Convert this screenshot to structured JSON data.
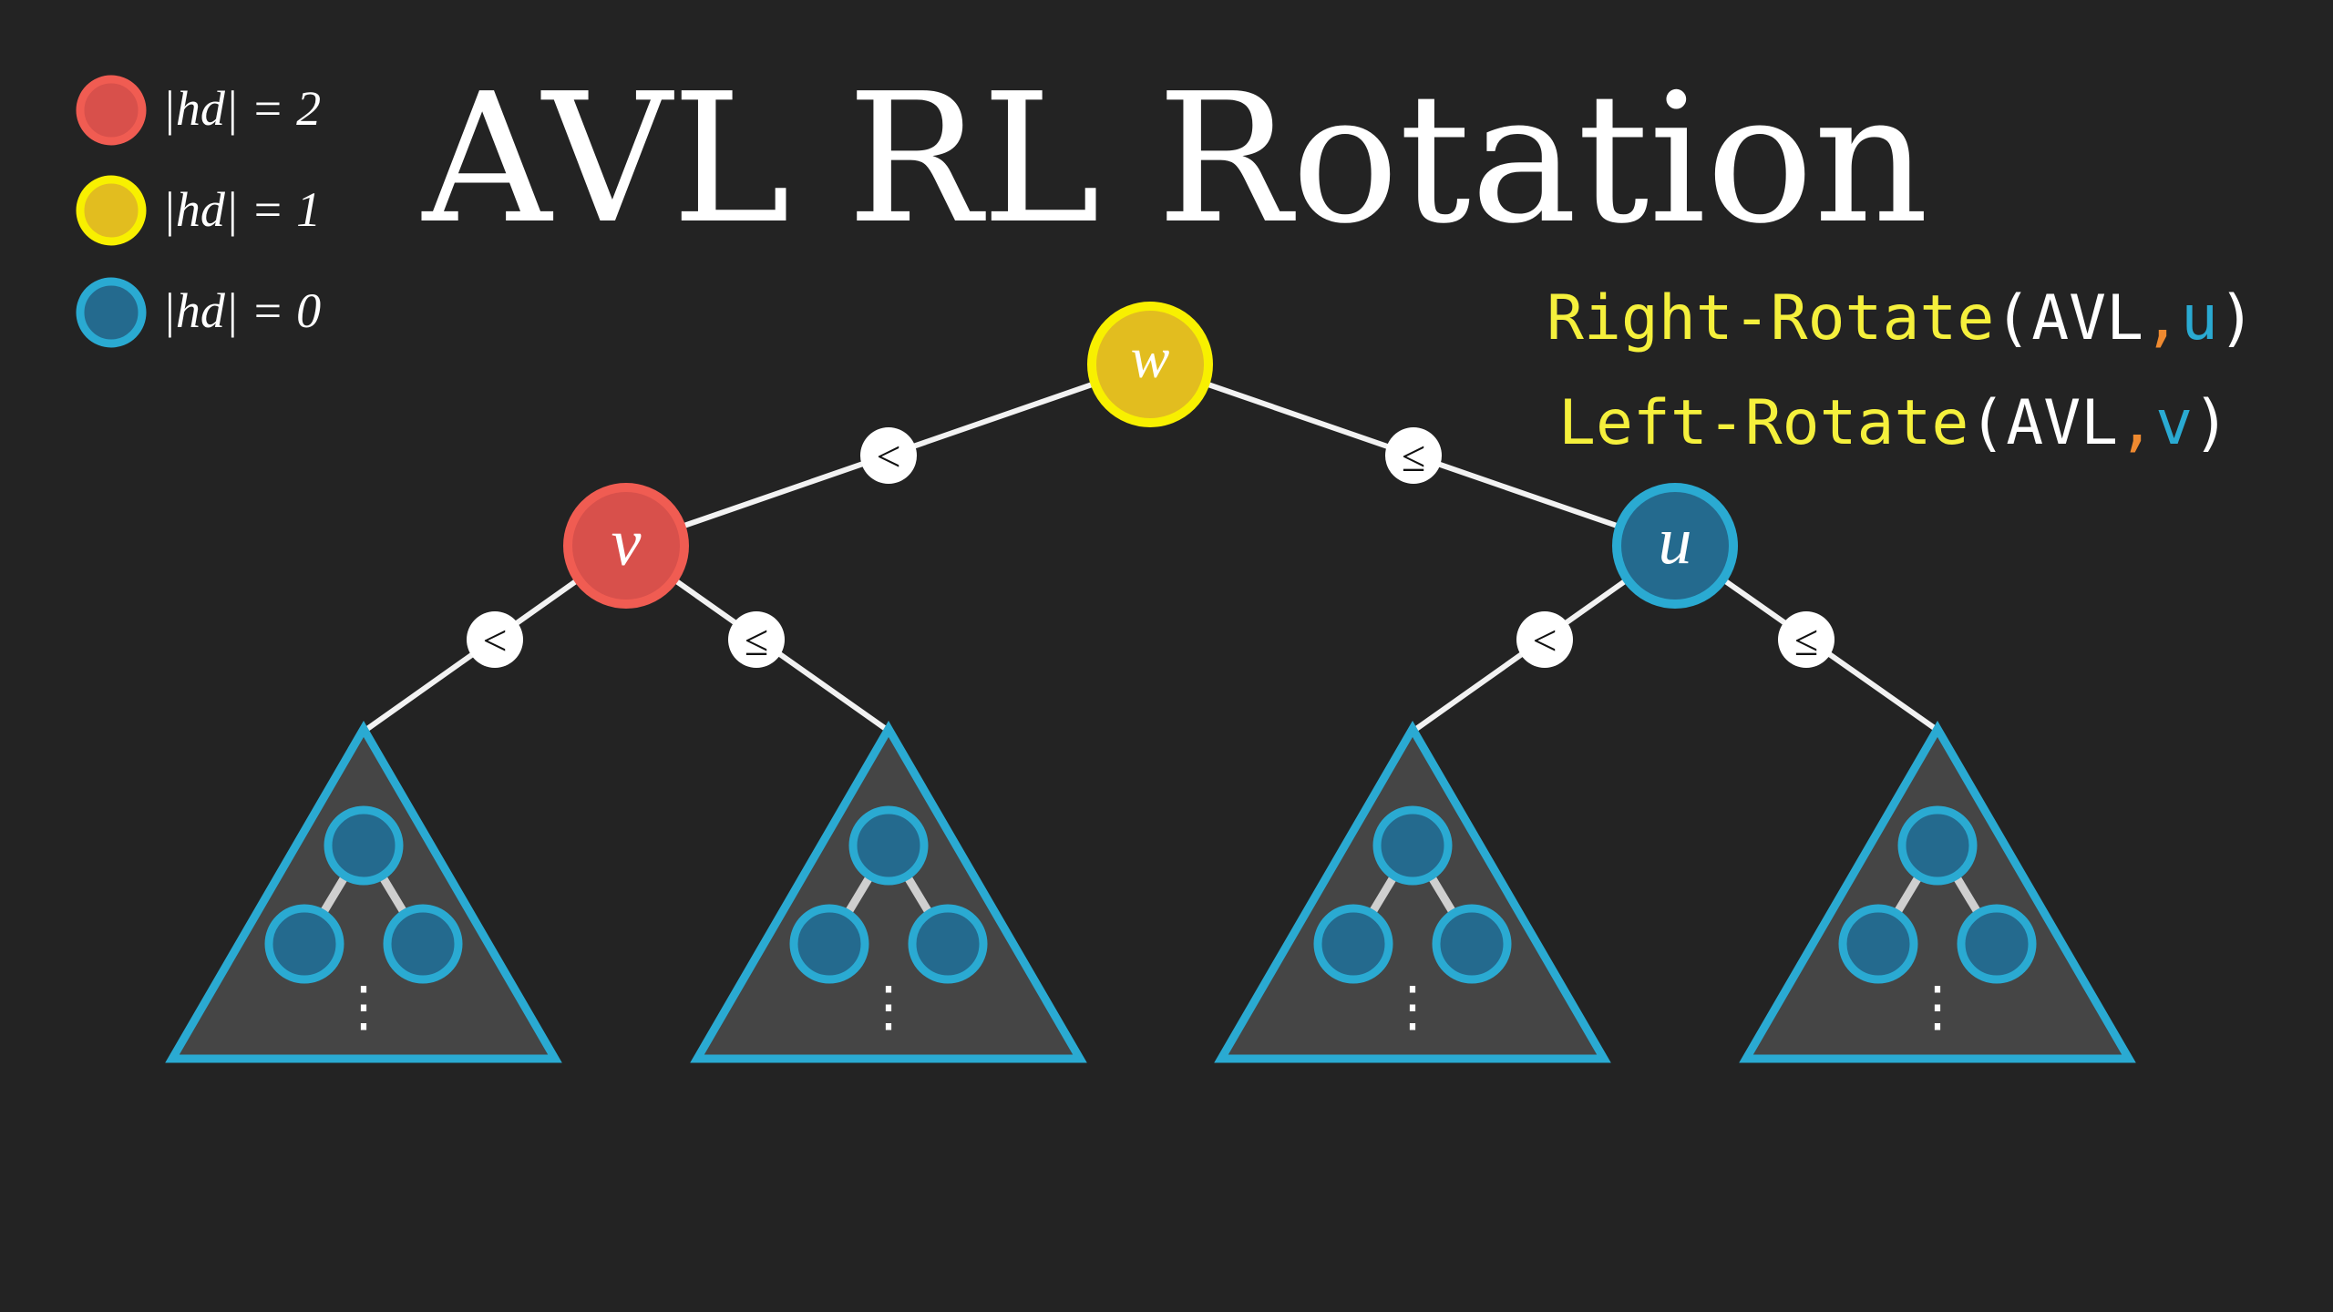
{
  "title": "AVL RL Rotation",
  "legend": [
    {
      "label": "|hd| = 2",
      "fill": "#d8504b",
      "stroke": "#f05c52"
    },
    {
      "label": "|hd| = 1",
      "fill": "#e2bd1f",
      "stroke": "#f8f000"
    },
    {
      "label": "|hd| = 0",
      "fill": "#246a8e",
      "stroke": "#2aaad2"
    }
  ],
  "code": {
    "line1": {
      "func": "Right-Rotate",
      "open": "(",
      "arg1": "AVL",
      "comma": ",",
      "arg2": "u",
      "close": ")"
    },
    "line2": {
      "func": "Left-Rotate",
      "open": "(",
      "arg1": "AVL",
      "comma": ",",
      "arg2": "v",
      "close": ")"
    }
  },
  "code_colors": {
    "func": "#f5f03c",
    "paren_and_arg": "#ffffff",
    "comma": "#ef8a30",
    "var": "#2aaad2"
  },
  "tree": {
    "nodes": {
      "root": {
        "label": "w",
        "state": "|hd| = 1"
      },
      "left": {
        "label": "v",
        "state": "|hd| = 2"
      },
      "right": {
        "label": "u",
        "state": "|hd| = 0"
      }
    },
    "edge_labels": {
      "root_left": "<",
      "root_right": "≤",
      "left_left": "<",
      "left_right": "≤",
      "right_left": "<",
      "right_right": "≤"
    },
    "subtree_count": 4,
    "subtree_ellipsis": "⋮"
  },
  "colors": {
    "background": "#232323",
    "edge": "#f2f2f2",
    "subtree_fill": "#454545",
    "subtree_stroke": "#2aaad2",
    "mini_node_fill": "#246a8e",
    "mini_node_stroke": "#2aaad2"
  }
}
